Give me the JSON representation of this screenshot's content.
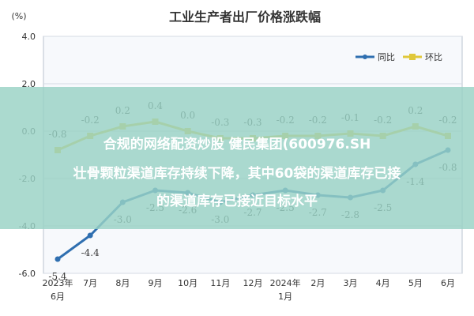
{
  "chart_data": {
    "type": "line",
    "title": "工业生产者出厂价格涨跌幅",
    "ylabel": "(%)",
    "ylim": [
      -6.0,
      4.0
    ],
    "yticks": [
      "4.0",
      "2.0",
      "0.0",
      "-2.0",
      "-4.0",
      "-6.0"
    ],
    "ytick_values": [
      4,
      2,
      0,
      -2,
      -4,
      -6
    ],
    "categories": [
      [
        "2023年",
        "6月"
      ],
      [
        "7月"
      ],
      [
        "8月"
      ],
      [
        "9月"
      ],
      [
        "10月"
      ],
      [
        "11月"
      ],
      [
        "12月"
      ],
      [
        "2024年",
        "1月"
      ],
      [
        "2月"
      ],
      [
        "3月"
      ],
      [
        "4月"
      ],
      [
        "5月"
      ],
      [
        "6月"
      ]
    ],
    "series": [
      {
        "name": "同比",
        "color": "#2f6fb0",
        "values": [
          -5.4,
          -4.4,
          -3.0,
          -2.5,
          -2.6,
          -3.0,
          -2.7,
          -2.5,
          -2.7,
          -2.8,
          -2.5,
          -1.4,
          -0.8
        ],
        "labels": [
          "-5.4",
          "-4.4",
          "-3.0",
          "-2.5",
          "-2.6",
          "-3.0",
          "-2.7",
          "-2.5",
          "-2.7",
          "-2.8",
          "-2.5",
          "-1.4",
          "-0.8"
        ]
      },
      {
        "name": "环比",
        "color": "#e0c83a",
        "values": [
          -0.8,
          -0.2,
          0.2,
          0.4,
          0.0,
          -0.3,
          -0.3,
          -0.2,
          -0.2,
          -0.1,
          -0.2,
          0.2,
          -0.2
        ],
        "labels": [
          "-0.8",
          "-0.2",
          "0.2",
          "0.4",
          "0.0",
          "-0.3",
          "-0.3",
          "-0.2",
          "-0.2",
          "-0.1",
          "-0.2",
          "0.2",
          "-0.2"
        ]
      }
    ],
    "legend_position": "top-right",
    "grid": true
  },
  "overlay": {
    "line1": "合规的网络配资炒股 健民集团(600976.SH",
    "line2": "壮骨颗粒渠道库存持续下降，其中60袋的渠道库存已接",
    "line3": "的渠道库存已接近目标水平"
  }
}
